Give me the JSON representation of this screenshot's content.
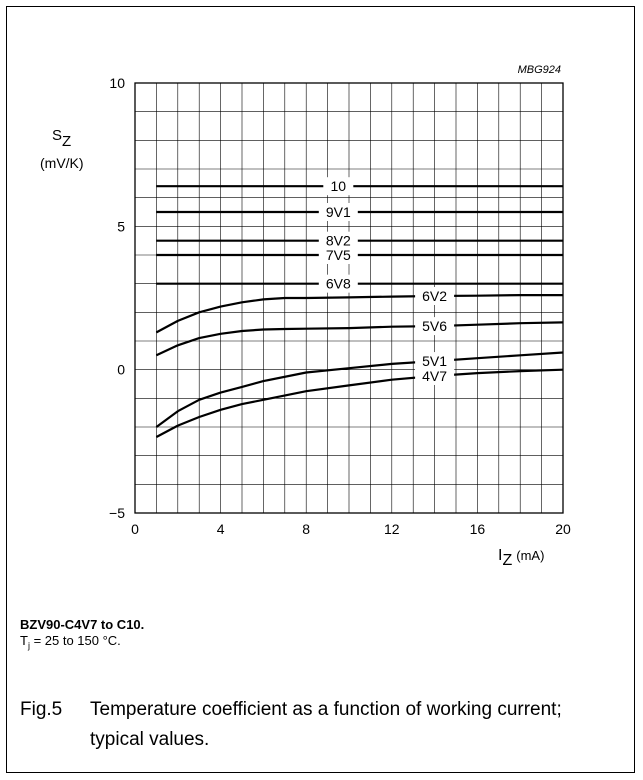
{
  "chart_data": {
    "type": "line",
    "code": "MBG924",
    "ylabel_main": "S",
    "ylabel_sub": "Z",
    "ylabel_unit": "(mV/K)",
    "xlabel_main": "I",
    "xlabel_sub": "Z",
    "xlabel_unit": "(mA)",
    "xlim": [
      0,
      20
    ],
    "ylim": [
      -5,
      10
    ],
    "x_ticks": [
      "0",
      "4",
      "8",
      "12",
      "16",
      "20"
    ],
    "y_ticks": [
      "10",
      "5",
      "0",
      "−5"
    ],
    "grid": true,
    "series": [
      {
        "name": "10",
        "label_x": 9.5,
        "x": [
          1,
          20
        ],
        "y": [
          6.4,
          6.4
        ]
      },
      {
        "name": "9V1",
        "label_x": 9.5,
        "x": [
          1,
          20
        ],
        "y": [
          5.5,
          5.5
        ]
      },
      {
        "name": "8V2",
        "label_x": 9.5,
        "x": [
          1,
          20
        ],
        "y": [
          4.5,
          4.5
        ]
      },
      {
        "name": "7V5",
        "label_x": 9.5,
        "x": [
          1,
          20
        ],
        "y": [
          4.0,
          4.0
        ]
      },
      {
        "name": "6V8",
        "label_x": 9.5,
        "x": [
          1,
          20
        ],
        "y": [
          3.0,
          3.0
        ]
      },
      {
        "name": "6V2",
        "label_x": 14.0,
        "x": [
          1,
          2,
          3,
          4,
          5,
          6,
          7,
          8,
          10,
          12,
          14,
          16,
          18,
          20
        ],
        "y": [
          1.3,
          1.7,
          2.0,
          2.2,
          2.35,
          2.45,
          2.5,
          2.5,
          2.52,
          2.55,
          2.57,
          2.58,
          2.6,
          2.6
        ]
      },
      {
        "name": "5V6",
        "label_x": 14.0,
        "x": [
          1,
          2,
          3,
          4,
          5,
          6,
          7,
          8,
          10,
          12,
          14,
          16,
          18,
          20
        ],
        "y": [
          0.5,
          0.85,
          1.1,
          1.25,
          1.35,
          1.4,
          1.42,
          1.43,
          1.45,
          1.5,
          1.52,
          1.57,
          1.62,
          1.65
        ]
      },
      {
        "name": "5V1",
        "label_x": 14.0,
        "x": [
          1,
          2,
          3,
          4,
          5,
          6,
          8,
          10,
          12,
          14,
          16,
          18,
          20
        ],
        "y": [
          -2.0,
          -1.45,
          -1.05,
          -0.8,
          -0.6,
          -0.4,
          -0.1,
          0.05,
          0.2,
          0.3,
          0.4,
          0.5,
          0.6
        ]
      },
      {
        "name": "4V7",
        "label_x": 14.0,
        "x": [
          1,
          2,
          3,
          4,
          5,
          6,
          8,
          10,
          12,
          14,
          16,
          18,
          20
        ],
        "y": [
          -2.35,
          -1.95,
          -1.65,
          -1.4,
          -1.2,
          -1.05,
          -0.75,
          -0.55,
          -0.35,
          -0.22,
          -0.12,
          -0.05,
          0.0
        ]
      }
    ]
  },
  "notes": {
    "device": "BZV90-C4V7 to C10.",
    "tj_symbol": "T",
    "tj_sub": "j",
    "tj_rest": " = 25 to 150 °C."
  },
  "caption": {
    "number": "Fig.5",
    "text": "Temperature coefficient as a function of working current; typical values."
  }
}
